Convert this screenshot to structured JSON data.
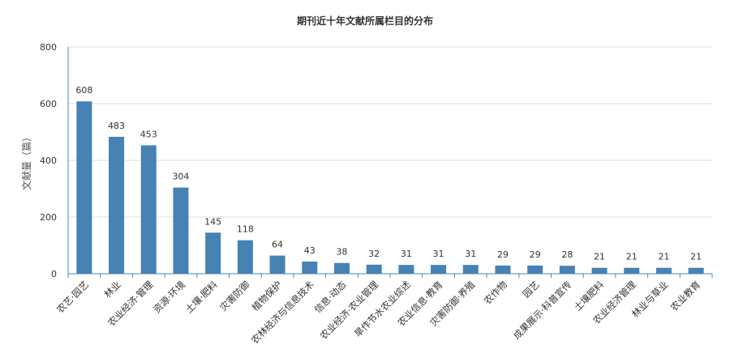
{
  "chart_data": {
    "type": "bar",
    "title": "期刊近十年文献所属栏目的分布",
    "ylabel": "文献量（篇）",
    "xlabel": "",
    "ylim": [
      0,
      800
    ],
    "yticks": [
      0,
      200,
      400,
      600,
      800
    ],
    "grid": true,
    "bar_color": "#4682b4",
    "categories": [
      "农艺·园艺",
      "林业",
      "农业经济·管理",
      "资源·环境",
      "土壤·肥料",
      "灾害防御",
      "植物保护",
      "农林经济与信息技术",
      "信息·动态",
      "农业经济·农业管理",
      "旱作节水农业综述",
      "农业信息·教育",
      "灾害防御·养殖",
      "农作物",
      "园艺",
      "成果展示·科普宣传",
      "土壤肥料",
      "农业经济管理",
      "林业与草业",
      "农业教育"
    ],
    "values": [
      608,
      483,
      453,
      304,
      145,
      118,
      64,
      43,
      38,
      32,
      31,
      31,
      31,
      29,
      29,
      28,
      21,
      21,
      21,
      21
    ]
  }
}
